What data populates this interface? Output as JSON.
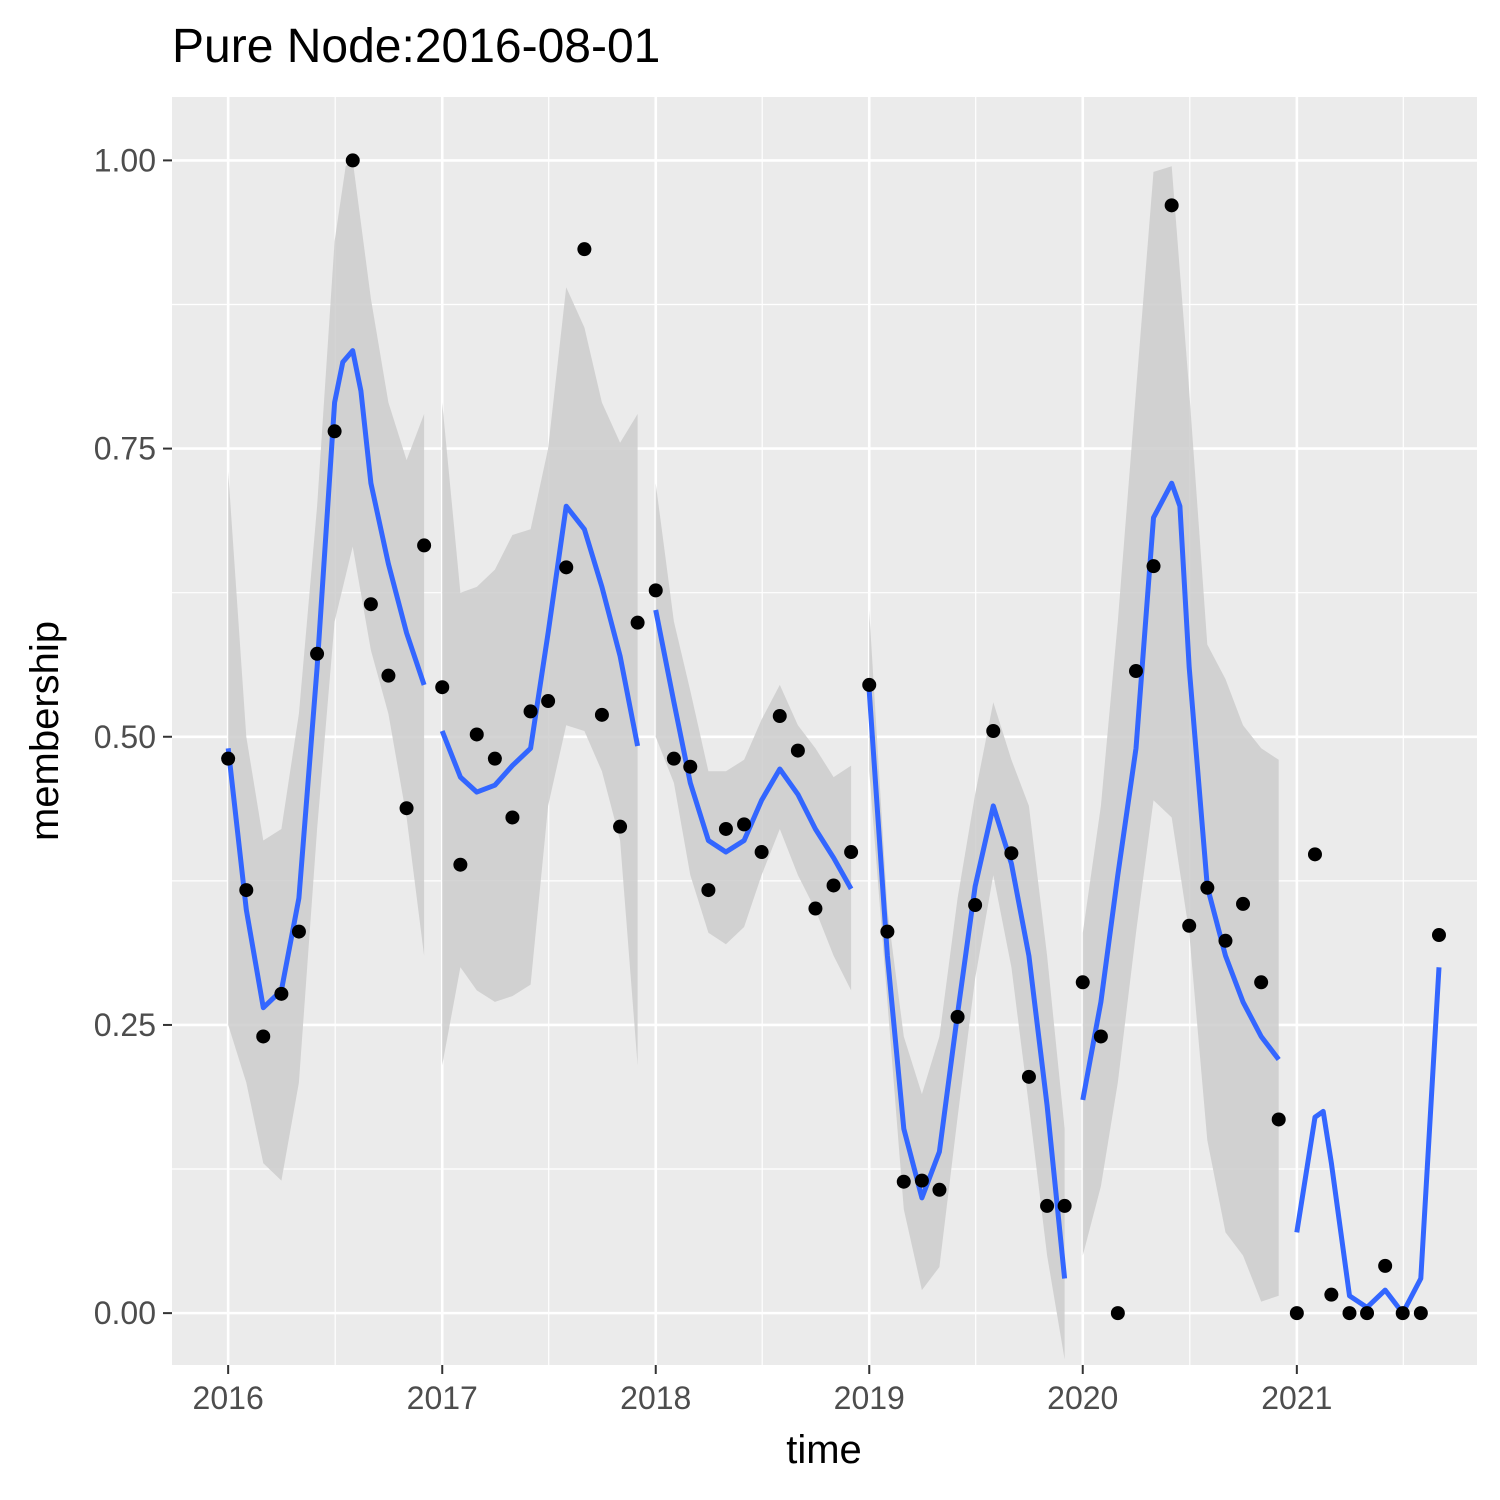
{
  "chart_data": {
    "type": "scatter",
    "title": "Pure Node:2016-08-01",
    "xlabel": "time",
    "ylabel": "membership",
    "x_ticks": [
      "2016",
      "2017",
      "2018",
      "2019",
      "2020",
      "2021"
    ],
    "y_ticks": [
      "0.00",
      "0.25",
      "0.50",
      "0.75",
      "1.00"
    ],
    "xlim": [
      "2015-09-27",
      "2021-11-05"
    ],
    "ylim": [
      -0.045,
      1.055
    ],
    "grid": true,
    "legend": "none",
    "colors": {
      "panel": "#ebebeb",
      "grid": "#ffffff",
      "points": "#000000",
      "smooth_line": "#3366ff",
      "ribbon": "#cccccc"
    },
    "points": [
      {
        "x": "2016-01-01",
        "y": 0.481
      },
      {
        "x": "2016-02-01",
        "y": 0.367
      },
      {
        "x": "2016-03-01",
        "y": 0.24
      },
      {
        "x": "2016-04-01",
        "y": 0.277
      },
      {
        "x": "2016-05-01",
        "y": 0.331
      },
      {
        "x": "2016-06-01",
        "y": 0.572
      },
      {
        "x": "2016-07-01",
        "y": 0.765
      },
      {
        "x": "2016-08-01",
        "y": 1.0
      },
      {
        "x": "2016-09-01",
        "y": 0.615
      },
      {
        "x": "2016-10-01",
        "y": 0.553
      },
      {
        "x": "2016-11-01",
        "y": 0.438
      },
      {
        "x": "2016-12-01",
        "y": 0.666
      },
      {
        "x": "2017-01-01",
        "y": 0.543
      },
      {
        "x": "2017-02-01",
        "y": 0.389
      },
      {
        "x": "2017-03-01",
        "y": 0.502
      },
      {
        "x": "2017-04-01",
        "y": 0.481
      },
      {
        "x": "2017-05-01",
        "y": 0.43
      },
      {
        "x": "2017-06-01",
        "y": 0.522
      },
      {
        "x": "2017-07-01",
        "y": 0.531
      },
      {
        "x": "2017-08-01",
        "y": 0.647
      },
      {
        "x": "2017-09-01",
        "y": 0.923
      },
      {
        "x": "2017-10-01",
        "y": 0.519
      },
      {
        "x": "2017-11-01",
        "y": 0.422
      },
      {
        "x": "2017-12-01",
        "y": 0.599
      },
      {
        "x": "2018-01-01",
        "y": 0.627
      },
      {
        "x": "2018-02-01",
        "y": 0.481
      },
      {
        "x": "2018-03-01",
        "y": 0.474
      },
      {
        "x": "2018-04-01",
        "y": 0.367
      },
      {
        "x": "2018-05-01",
        "y": 0.42
      },
      {
        "x": "2018-06-01",
        "y": 0.424
      },
      {
        "x": "2018-07-01",
        "y": 0.4
      },
      {
        "x": "2018-08-01",
        "y": 0.518
      },
      {
        "x": "2018-09-01",
        "y": 0.488
      },
      {
        "x": "2018-10-01",
        "y": 0.351
      },
      {
        "x": "2018-11-01",
        "y": 0.371
      },
      {
        "x": "2018-12-01",
        "y": 0.4
      },
      {
        "x": "2019-01-01",
        "y": 0.545
      },
      {
        "x": "2019-02-01",
        "y": 0.331
      },
      {
        "x": "2019-03-01",
        "y": 0.114
      },
      {
        "x": "2019-04-01",
        "y": 0.115
      },
      {
        "x": "2019-05-01",
        "y": 0.107
      },
      {
        "x": "2019-06-01",
        "y": 0.257
      },
      {
        "x": "2019-07-01",
        "y": 0.354
      },
      {
        "x": "2019-08-01",
        "y": 0.505
      },
      {
        "x": "2019-09-01",
        "y": 0.399
      },
      {
        "x": "2019-10-01",
        "y": 0.205
      },
      {
        "x": "2019-11-01",
        "y": 0.093
      },
      {
        "x": "2019-12-01",
        "y": 0.093
      },
      {
        "x": "2020-01-01",
        "y": 0.287
      },
      {
        "x": "2020-02-01",
        "y": 0.24
      },
      {
        "x": "2020-03-01",
        "y": 0.0
      },
      {
        "x": "2020-04-01",
        "y": 0.557
      },
      {
        "x": "2020-05-01",
        "y": 0.648
      },
      {
        "x": "2020-06-01",
        "y": 0.961
      },
      {
        "x": "2020-07-01",
        "y": 0.336
      },
      {
        "x": "2020-08-01",
        "y": 0.369
      },
      {
        "x": "2020-09-01",
        "y": 0.323
      },
      {
        "x": "2020-10-01",
        "y": 0.355
      },
      {
        "x": "2020-11-01",
        "y": 0.287
      },
      {
        "x": "2020-12-01",
        "y": 0.168
      },
      {
        "x": "2021-01-01",
        "y": 0.0
      },
      {
        "x": "2021-02-01",
        "y": 0.398
      },
      {
        "x": "2021-03-01",
        "y": 0.016
      },
      {
        "x": "2021-04-01",
        "y": 0.0
      },
      {
        "x": "2021-05-01",
        "y": 0.0
      },
      {
        "x": "2021-06-01",
        "y": 0.041
      },
      {
        "x": "2021-07-01",
        "y": 0.0
      },
      {
        "x": "2021-08-01",
        "y": 0.0
      },
      {
        "x": "2021-09-01",
        "y": 0.328
      }
    ],
    "smooth_segments": [
      {
        "line": [
          [
            "2016-01-01",
            0.49
          ],
          [
            "2016-02-01",
            0.35
          ],
          [
            "2016-03-01",
            0.265
          ],
          [
            "2016-04-01",
            0.28
          ],
          [
            "2016-05-01",
            0.36
          ],
          [
            "2016-06-01",
            0.56
          ],
          [
            "2016-07-01",
            0.79
          ],
          [
            "2016-07-15",
            0.825
          ],
          [
            "2016-08-01",
            0.835
          ],
          [
            "2016-08-15",
            0.8
          ],
          [
            "2016-09-01",
            0.72
          ],
          [
            "2016-10-01",
            0.65
          ],
          [
            "2016-11-01",
            0.59
          ],
          [
            "2016-12-01",
            0.545
          ]
        ],
        "lower": [
          [
            "2016-01-01",
            0.25
          ],
          [
            "2016-02-01",
            0.2
          ],
          [
            "2016-03-01",
            0.13
          ],
          [
            "2016-04-01",
            0.115
          ],
          [
            "2016-05-01",
            0.2
          ],
          [
            "2016-06-01",
            0.42
          ],
          [
            "2016-07-01",
            0.6
          ],
          [
            "2016-08-01",
            0.665
          ],
          [
            "2016-09-01",
            0.575
          ],
          [
            "2016-10-01",
            0.52
          ],
          [
            "2016-11-01",
            0.43
          ],
          [
            "2016-12-01",
            0.31
          ]
        ],
        "upper": [
          [
            "2016-01-01",
            0.73
          ],
          [
            "2016-02-01",
            0.5
          ],
          [
            "2016-03-01",
            0.41
          ],
          [
            "2016-04-01",
            0.42
          ],
          [
            "2016-05-01",
            0.52
          ],
          [
            "2016-06-01",
            0.7
          ],
          [
            "2016-07-01",
            0.93
          ],
          [
            "2016-07-20",
            0.995
          ],
          [
            "2016-08-01",
            1.0
          ],
          [
            "2016-09-01",
            0.88
          ],
          [
            "2016-10-01",
            0.79
          ],
          [
            "2016-11-01",
            0.74
          ],
          [
            "2016-12-01",
            0.78
          ]
        ]
      },
      {
        "line": [
          [
            "2017-01-01",
            0.505
          ],
          [
            "2017-02-01",
            0.465
          ],
          [
            "2017-03-01",
            0.452
          ],
          [
            "2017-04-01",
            0.458
          ],
          [
            "2017-05-01",
            0.475
          ],
          [
            "2017-06-01",
            0.49
          ],
          [
            "2017-07-01",
            0.59
          ],
          [
            "2017-08-01",
            0.7
          ],
          [
            "2017-09-01",
            0.68
          ],
          [
            "2017-10-01",
            0.63
          ],
          [
            "2017-11-01",
            0.57
          ],
          [
            "2017-12-01",
            0.492
          ]
        ],
        "lower": [
          [
            "2017-01-01",
            0.215
          ],
          [
            "2017-02-01",
            0.3
          ],
          [
            "2017-03-01",
            0.28
          ],
          [
            "2017-04-01",
            0.27
          ],
          [
            "2017-05-01",
            0.275
          ],
          [
            "2017-06-01",
            0.285
          ],
          [
            "2017-07-01",
            0.44
          ],
          [
            "2017-08-01",
            0.51
          ],
          [
            "2017-09-01",
            0.505
          ],
          [
            "2017-10-01",
            0.47
          ],
          [
            "2017-11-01",
            0.41
          ],
          [
            "2017-12-01",
            0.215
          ]
        ],
        "upper": [
          [
            "2017-01-01",
            0.79
          ],
          [
            "2017-02-01",
            0.625
          ],
          [
            "2017-03-01",
            0.63
          ],
          [
            "2017-04-01",
            0.645
          ],
          [
            "2017-05-01",
            0.675
          ],
          [
            "2017-06-01",
            0.68
          ],
          [
            "2017-07-01",
            0.75
          ],
          [
            "2017-08-01",
            0.89
          ],
          [
            "2017-09-01",
            0.855
          ],
          [
            "2017-10-01",
            0.79
          ],
          [
            "2017-11-01",
            0.755
          ],
          [
            "2017-12-01",
            0.78
          ]
        ]
      },
      {
        "line": [
          [
            "2018-01-01",
            0.61
          ],
          [
            "2018-02-01",
            0.53
          ],
          [
            "2018-03-01",
            0.46
          ],
          [
            "2018-04-01",
            0.41
          ],
          [
            "2018-05-01",
            0.4
          ],
          [
            "2018-06-01",
            0.41
          ],
          [
            "2018-07-01",
            0.445
          ],
          [
            "2018-08-01",
            0.472
          ],
          [
            "2018-09-01",
            0.45
          ],
          [
            "2018-10-01",
            0.42
          ],
          [
            "2018-11-01",
            0.395
          ],
          [
            "2018-12-01",
            0.368
          ]
        ],
        "lower": [
          [
            "2018-01-01",
            0.5
          ],
          [
            "2018-02-01",
            0.46
          ],
          [
            "2018-03-01",
            0.38
          ],
          [
            "2018-04-01",
            0.33
          ],
          [
            "2018-05-01",
            0.32
          ],
          [
            "2018-06-01",
            0.335
          ],
          [
            "2018-07-01",
            0.38
          ],
          [
            "2018-08-01",
            0.42
          ],
          [
            "2018-09-01",
            0.38
          ],
          [
            "2018-10-01",
            0.35
          ],
          [
            "2018-11-01",
            0.31
          ],
          [
            "2018-12-01",
            0.28
          ]
        ],
        "upper": [
          [
            "2018-01-01",
            0.72
          ],
          [
            "2018-02-01",
            0.6
          ],
          [
            "2018-03-01",
            0.54
          ],
          [
            "2018-04-01",
            0.47
          ],
          [
            "2018-05-01",
            0.47
          ],
          [
            "2018-06-01",
            0.48
          ],
          [
            "2018-07-01",
            0.515
          ],
          [
            "2018-08-01",
            0.545
          ],
          [
            "2018-09-01",
            0.51
          ],
          [
            "2018-10-01",
            0.49
          ],
          [
            "2018-11-01",
            0.465
          ],
          [
            "2018-12-01",
            0.475
          ]
        ]
      },
      {
        "line": [
          [
            "2019-01-01",
            0.54
          ],
          [
            "2019-02-01",
            0.31
          ],
          [
            "2019-03-01",
            0.16
          ],
          [
            "2019-04-01",
            0.1
          ],
          [
            "2019-05-01",
            0.14
          ],
          [
            "2019-06-01",
            0.26
          ],
          [
            "2019-07-01",
            0.37
          ],
          [
            "2019-08-01",
            0.44
          ],
          [
            "2019-09-01",
            0.39
          ],
          [
            "2019-10-01",
            0.31
          ],
          [
            "2019-11-01",
            0.18
          ],
          [
            "2019-12-01",
            0.03
          ]
        ],
        "lower": [
          [
            "2019-01-01",
            0.47
          ],
          [
            "2019-02-01",
            0.27
          ],
          [
            "2019-03-01",
            0.09
          ],
          [
            "2019-04-01",
            0.02
          ],
          [
            "2019-05-01",
            0.04
          ],
          [
            "2019-06-01",
            0.17
          ],
          [
            "2019-07-01",
            0.29
          ],
          [
            "2019-08-01",
            0.38
          ],
          [
            "2019-09-01",
            0.3
          ],
          [
            "2019-10-01",
            0.18
          ],
          [
            "2019-11-01",
            0.05
          ],
          [
            "2019-12-01",
            -0.04
          ]
        ],
        "upper": [
          [
            "2019-01-01",
            0.61
          ],
          [
            "2019-02-01",
            0.35
          ],
          [
            "2019-03-01",
            0.24
          ],
          [
            "2019-04-01",
            0.19
          ],
          [
            "2019-05-01",
            0.24
          ],
          [
            "2019-06-01",
            0.36
          ],
          [
            "2019-07-01",
            0.45
          ],
          [
            "2019-08-01",
            0.53
          ],
          [
            "2019-09-01",
            0.48
          ],
          [
            "2019-10-01",
            0.44
          ],
          [
            "2019-11-01",
            0.31
          ],
          [
            "2019-12-01",
            0.16
          ]
        ]
      },
      {
        "line": [
          [
            "2020-01-01",
            0.185
          ],
          [
            "2020-02-01",
            0.27
          ],
          [
            "2020-03-01",
            0.38
          ],
          [
            "2020-04-01",
            0.49
          ],
          [
            "2020-05-01",
            0.69
          ],
          [
            "2020-06-01",
            0.72
          ],
          [
            "2020-06-15",
            0.7
          ],
          [
            "2020-07-01",
            0.56
          ],
          [
            "2020-08-01",
            0.37
          ],
          [
            "2020-09-01",
            0.31
          ],
          [
            "2020-10-01",
            0.27
          ],
          [
            "2020-11-01",
            0.24
          ],
          [
            "2020-12-01",
            0.22
          ]
        ],
        "lower": [
          [
            "2020-01-01",
            0.05
          ],
          [
            "2020-02-01",
            0.11
          ],
          [
            "2020-03-01",
            0.2
          ],
          [
            "2020-04-01",
            0.33
          ],
          [
            "2020-05-01",
            0.445
          ],
          [
            "2020-06-01",
            0.43
          ],
          [
            "2020-07-01",
            0.33
          ],
          [
            "2020-08-01",
            0.15
          ],
          [
            "2020-09-01",
            0.07
          ],
          [
            "2020-10-01",
            0.05
          ],
          [
            "2020-11-01",
            0.01
          ],
          [
            "2020-12-01",
            0.015
          ]
        ],
        "upper": [
          [
            "2020-01-01",
            0.33
          ],
          [
            "2020-02-01",
            0.44
          ],
          [
            "2020-03-01",
            0.6
          ],
          [
            "2020-04-01",
            0.8
          ],
          [
            "2020-05-01",
            0.99
          ],
          [
            "2020-06-01",
            0.995
          ],
          [
            "2020-07-01",
            0.8
          ],
          [
            "2020-08-01",
            0.58
          ],
          [
            "2020-09-01",
            0.55
          ],
          [
            "2020-10-01",
            0.51
          ],
          [
            "2020-11-01",
            0.49
          ],
          [
            "2020-12-01",
            0.48
          ]
        ]
      },
      {
        "line": [
          [
            "2021-01-01",
            0.07
          ],
          [
            "2021-02-01",
            0.17
          ],
          [
            "2021-02-15",
            0.175
          ],
          [
            "2021-03-01",
            0.13
          ],
          [
            "2021-04-01",
            0.015
          ],
          [
            "2021-05-01",
            0.005
          ],
          [
            "2021-06-01",
            0.02
          ],
          [
            "2021-07-01",
            0.0
          ],
          [
            "2021-08-01",
            0.03
          ],
          [
            "2021-09-01",
            0.3
          ]
        ]
      }
    ]
  }
}
